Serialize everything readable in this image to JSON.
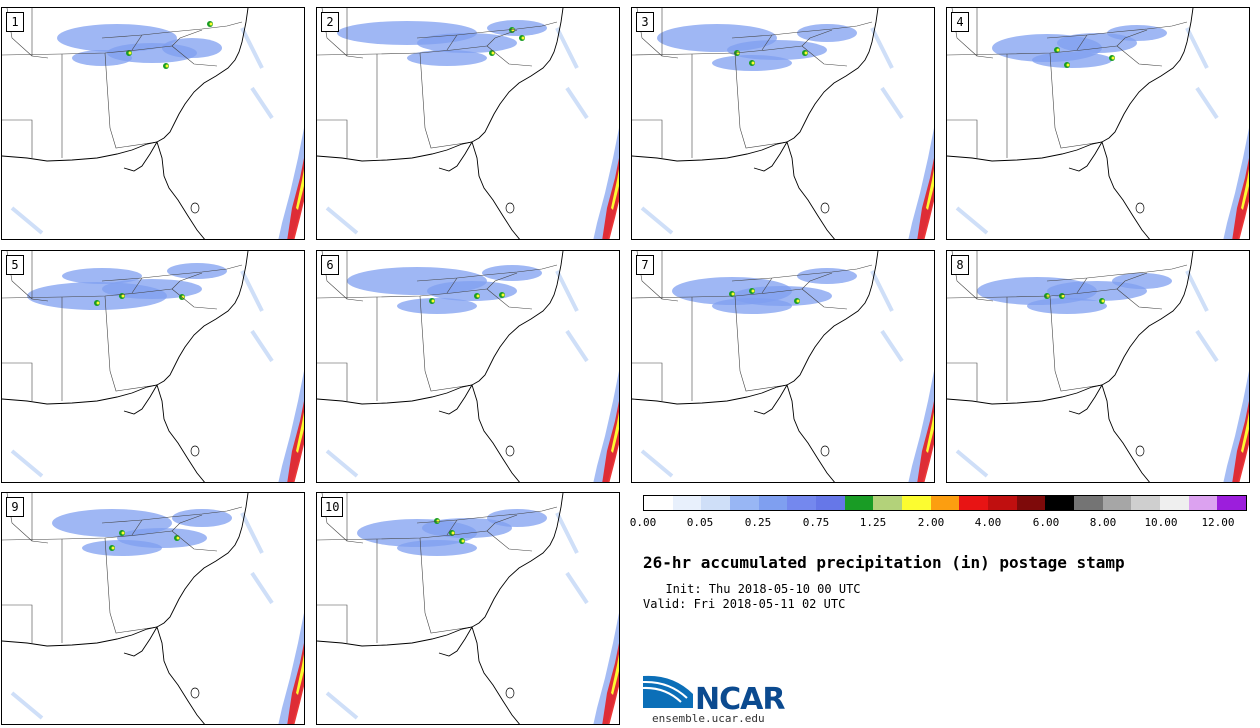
{
  "title": "26-hr accumulated precipitation (in) postage stamp",
  "init": "  Init: Thu 2018-05-10 00 UTC",
  "valid": "Valid: Fri 2018-05-11 02 UTC",
  "colorbar": {
    "colors": [
      "#ffffff",
      "#e8f0fc",
      "#cfdff8",
      "#98b6f4",
      "#7f9ff0",
      "#7488ee",
      "#6677e8",
      "#199c25",
      "#b3d27a",
      "#fcfc30",
      "#fc9e10",
      "#e81414",
      "#c00f0f",
      "#7e0a0a",
      "#000000",
      "#747474",
      "#a6a6a6",
      "#cfcfcf",
      "#efefef",
      "#dca2f0",
      "#9c1edc"
    ],
    "tick_labels": [
      "0.00",
      "0.05",
      "0.25",
      "0.75",
      "1.25",
      "2.00",
      "4.00",
      "6.00",
      "8.00",
      "10.00",
      "12.00"
    ]
  },
  "panels": [
    "1",
    "2",
    "3",
    "4",
    "5",
    "6",
    "7",
    "8",
    "9",
    "10"
  ],
  "logo": {
    "name": "NCAR",
    "url": "ensemble.ucar.edu"
  }
}
